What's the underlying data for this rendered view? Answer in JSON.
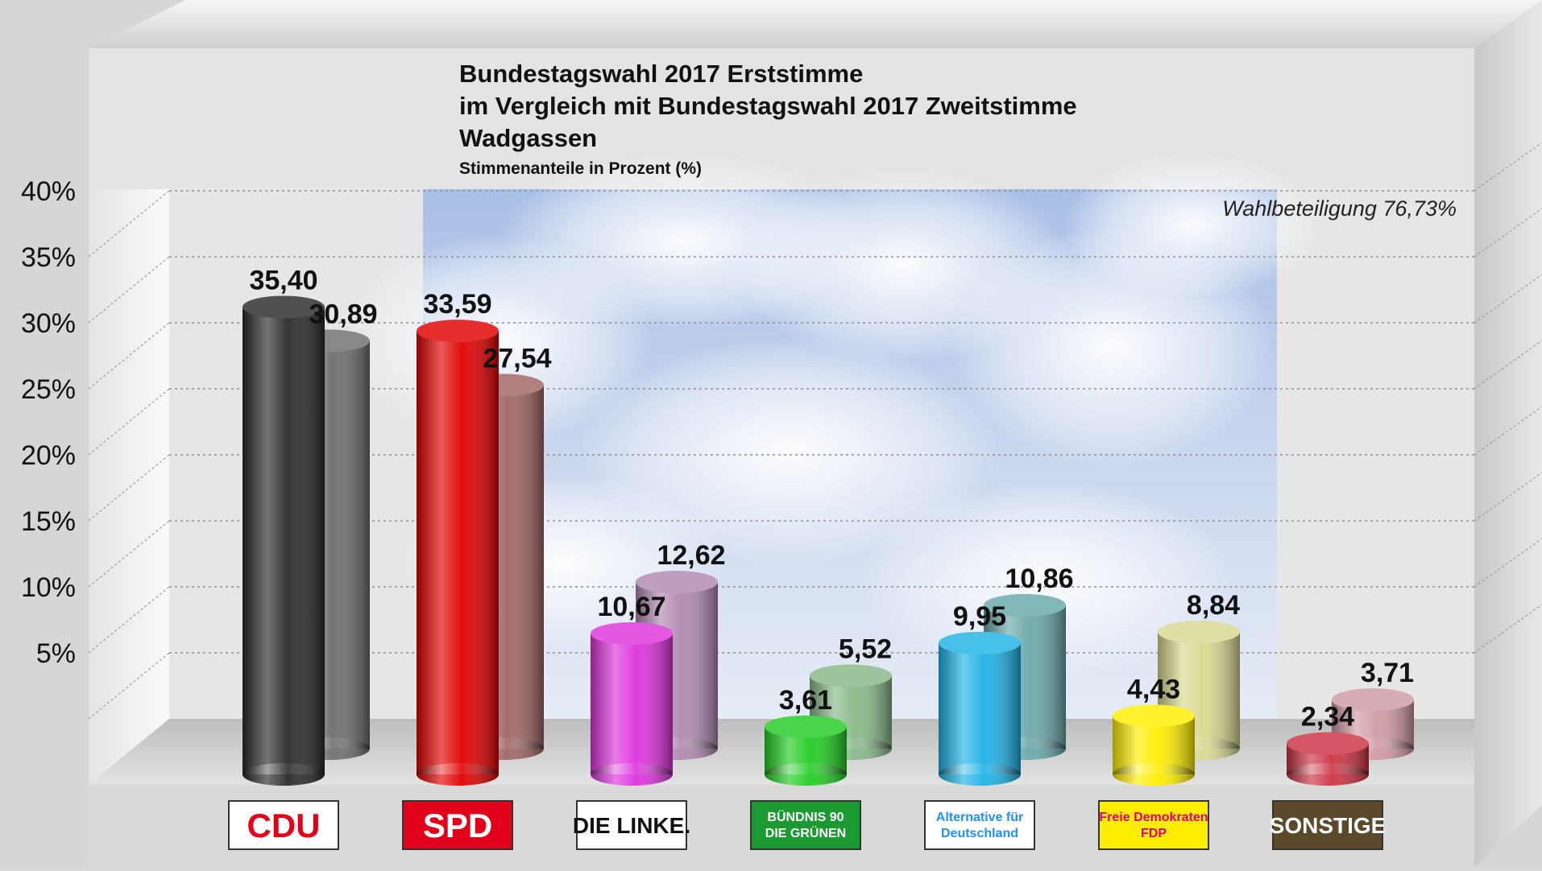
{
  "chart_data": {
    "type": "bar",
    "title": "Bundestagswahl 2017 Erststimme",
    "title_line2": "im Vergleich mit Bundestagswahl 2017 Zweitstimme",
    "title_line3": "Wadgassen",
    "subtitle": "Stimmenanteile in Prozent (%)",
    "annotation": "Wahlbeteiligung 76,73%",
    "ylim": [
      0,
      40
    ],
    "yticks": [
      "5%",
      "10%",
      "15%",
      "20%",
      "25%",
      "30%",
      "35%",
      "40%"
    ],
    "grid": true,
    "categories": [
      "CDU",
      "SPD",
      "DIE LINKE.",
      "BÜNDNIS 90 DIE GRÜNEN",
      "Alternative für Deutschland",
      "Freie Demokraten FDP",
      "SONSTIGE"
    ],
    "series": [
      {
        "values": [
          35.4,
          33.59,
          10.67,
          3.61,
          9.95,
          4.43,
          2.34
        ],
        "labels": [
          "35,40",
          "33,59",
          "10,67",
          "3,61",
          "9,95",
          "4,43",
          "2,34"
        ]
      },
      {
        "values": [
          30.89,
          27.54,
          12.62,
          5.52,
          10.86,
          8.84,
          3.71
        ],
        "labels": [
          "30,89",
          "27,54",
          "12,62",
          "5,52",
          "10,86",
          "8,84",
          "3,71"
        ]
      }
    ],
    "colors_first": [
      "#2a2a2a",
      "#e00000",
      "#dd33dd",
      "#22cc22",
      "#1fb2e6",
      "#ffee00",
      "#cc3344"
    ],
    "colors_second": [
      "#6e6e6e",
      "#a06666",
      "#b088b0",
      "#88b888",
      "#6aa8aa",
      "#d8d890",
      "#d09aa4"
    ],
    "logo_backgrounds": [
      "#ffffff",
      "#e3001b",
      "#ffffff",
      "#1a9a30",
      "#ffffff",
      "#ffed00",
      "#5a4a2a"
    ],
    "logo_text_colors": [
      "#e3001b",
      "#ffffff",
      "#111111",
      "#ffffff",
      "#1e90ff",
      "#e5007d",
      "#ffffff"
    ]
  }
}
